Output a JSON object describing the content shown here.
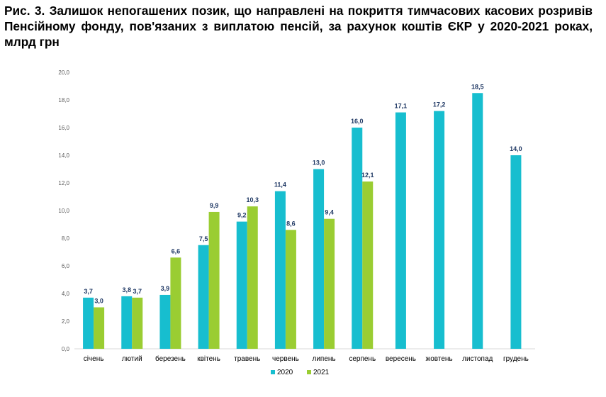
{
  "caption": "Рис. 3. Залишок непогашених позик, що направлені на покриття тимчасових касових розривів Пенсійному фонду, пов'язаних з виплатою пенсій, за рахунок коштів ЄКР у 2020-2021 роках, млрд грн",
  "chart_data": {
    "type": "bar",
    "title": "Рис. 3. Залишок непогашених позик, що направлені на покриття тимчасових касових розривів Пенсійному фонду, пов'язаних з виплатою пенсій, за рахунок коштів ЄКР у 2020-2021 роках, млрд грн",
    "categories": [
      "січень",
      "лютий",
      "березень",
      "квітень",
      "травень",
      "червень",
      "липень",
      "серпень",
      "вересень",
      "жовтень",
      "листопад",
      "грудень"
    ],
    "series": [
      {
        "name": "2020",
        "color": "#17becf",
        "values": [
          3.7,
          3.8,
          3.9,
          7.5,
          9.2,
          11.4,
          13.0,
          16.0,
          17.1,
          17.2,
          18.5,
          14.0
        ]
      },
      {
        "name": "2021",
        "color": "#9acd32",
        "values": [
          3.0,
          3.7,
          6.6,
          9.9,
          10.3,
          8.6,
          9.4,
          12.1,
          null,
          null,
          null,
          null
        ]
      }
    ],
    "ylim": [
      0,
      20
    ],
    "yticks": [
      "0,0",
      "2,0",
      "4,0",
      "6,0",
      "8,0",
      "10,0",
      "12,0",
      "14,0",
      "16,0",
      "18,0",
      "20,0"
    ],
    "grid": false,
    "legend": "bottom-center",
    "xlabel": "",
    "ylabel": ""
  }
}
